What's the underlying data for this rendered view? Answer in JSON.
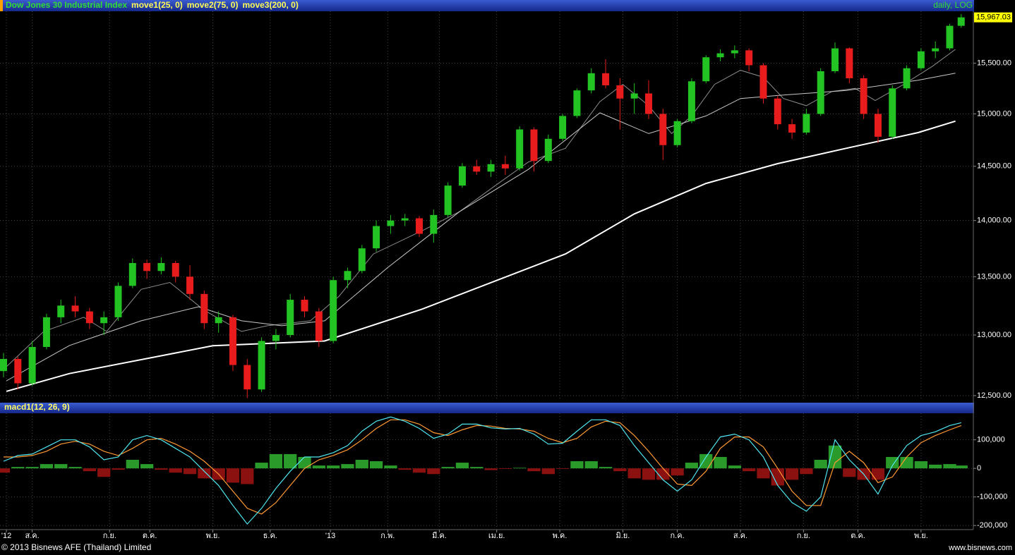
{
  "chart_data": [
    {
      "type": "candlestick",
      "title": "Dow Jones 30 Industrial Index",
      "header_right": "daily, LOG",
      "log_scale": true,
      "grid": true,
      "up_color": "#22c322",
      "down_color": "#e81c1c",
      "xlim": [
        0,
        338
      ],
      "ylim": [
        12460,
        16030
      ],
      "yticks": [
        {
          "value": 12500,
          "label": "12,500.00"
        },
        {
          "value": 13000,
          "label": "13,000.00"
        },
        {
          "value": 13500,
          "label": "13,500.00"
        },
        {
          "value": 14000,
          "label": "14,000.00"
        },
        {
          "value": 14500,
          "label": "14,500.00"
        },
        {
          "value": 15000,
          "label": "15,000.00"
        },
        {
          "value": 15500,
          "label": "15,500.00"
        }
      ],
      "x": [
        0,
        5,
        10,
        15,
        20,
        25,
        30,
        35,
        40,
        45,
        50,
        55,
        60,
        65,
        70,
        75,
        80,
        85,
        90,
        95,
        100,
        105,
        110,
        115,
        120,
        125,
        130,
        135,
        140,
        145,
        150,
        155,
        160,
        165,
        170,
        175,
        180,
        185,
        190,
        195,
        200,
        205,
        210,
        215,
        220,
        225,
        230,
        235,
        240,
        245,
        250,
        255,
        260,
        265,
        270,
        275,
        280,
        285,
        290,
        295,
        300,
        305,
        310,
        315,
        320,
        325,
        330,
        334
      ],
      "open": [
        12700,
        12800,
        12600,
        12900,
        13150,
        13250,
        13200,
        13100,
        13150,
        13420,
        13620,
        13550,
        13620,
        13500,
        13350,
        13100,
        13150,
        12750,
        12550,
        12950,
        13000,
        13300,
        13200,
        12950,
        13470,
        13550,
        13750,
        13950,
        14000,
        14020,
        13880,
        14050,
        14320,
        14500,
        14450,
        14520,
        14480,
        14850,
        14550,
        14760,
        14980,
        15230,
        15400,
        15280,
        15150,
        15200,
        15000,
        14700,
        14930,
        15320,
        15560,
        15600,
        15630,
        15480,
        15150,
        14900,
        14820,
        15000,
        15420,
        15650,
        15350,
        15000,
        14780,
        15250,
        15450,
        15620,
        15650,
        15880
      ],
      "high": [
        12850,
        12820,
        12950,
        13180,
        13300,
        13330,
        13230,
        13200,
        13450,
        13660,
        13650,
        13670,
        13640,
        13600,
        13380,
        13200,
        13170,
        12800,
        12980,
        13050,
        13350,
        13330,
        13230,
        13500,
        13580,
        13780,
        14000,
        14050,
        14060,
        14040,
        14100,
        14350,
        14530,
        14560,
        14560,
        14600,
        14880,
        14870,
        14800,
        15000,
        15250,
        15450,
        15540,
        15350,
        15300,
        15330,
        15050,
        14950,
        15350,
        15580,
        15640,
        15680,
        15650,
        15500,
        15180,
        14950,
        15050,
        15450,
        15710,
        15660,
        15380,
        15050,
        15280,
        15480,
        15650,
        15720,
        15900,
        16000
      ],
      "low": [
        12650,
        12550,
        12580,
        12880,
        13100,
        13150,
        13050,
        13000,
        13120,
        13400,
        13480,
        13520,
        13450,
        13300,
        13050,
        13020,
        12700,
        12480,
        12530,
        12880,
        12980,
        13150,
        12900,
        12930,
        13400,
        13530,
        13720,
        13880,
        13950,
        13850,
        13800,
        14030,
        14300,
        14420,
        14400,
        14420,
        14460,
        14450,
        14530,
        14740,
        14960,
        15200,
        15250,
        14850,
        15000,
        14950,
        14560,
        14680,
        14910,
        15300,
        15520,
        15550,
        15420,
        15100,
        14850,
        14760,
        14800,
        14980,
        15400,
        15300,
        14950,
        14720,
        14760,
        15230,
        15430,
        15550,
        15630,
        15860
      ],
      "close": [
        12800,
        12600,
        12900,
        13150,
        13250,
        13200,
        13100,
        13150,
        13420,
        13620,
        13550,
        13620,
        13500,
        13350,
        13100,
        13150,
        12750,
        12550,
        12950,
        13000,
        13300,
        13200,
        12950,
        13470,
        13550,
        13750,
        13950,
        14000,
        14020,
        13880,
        14050,
        14320,
        14500,
        14450,
        14520,
        14480,
        14850,
        14550,
        14760,
        14980,
        15230,
        15400,
        15280,
        15150,
        15200,
        15000,
        14700,
        14930,
        15320,
        15560,
        15600,
        15630,
        15480,
        15150,
        14900,
        14820,
        15000,
        15420,
        15650,
        15350,
        15000,
        14780,
        15250,
        15450,
        15620,
        15650,
        15880,
        15967.03
      ],
      "last_price_label": "15,967.03",
      "series": [
        {
          "name": "move1(25, 0)",
          "color": "#8c8c8c",
          "x": [
            1,
            14,
            28,
            36,
            48,
            58,
            70,
            83,
            92,
            107,
            117,
            129,
            147,
            159,
            171,
            183,
            196,
            208,
            216,
            225,
            233,
            240,
            248,
            257,
            265,
            272,
            280,
            289,
            297,
            304,
            314,
            324,
            332
          ],
          "values": [
            12736,
            13030,
            13150,
            13030,
            13390,
            13450,
            13210,
            13030,
            13078,
            13120,
            13330,
            13700,
            13920,
            14080,
            14310,
            14540,
            14670,
            15120,
            15290,
            15080,
            14810,
            14980,
            15290,
            15430,
            15360,
            15150,
            15080,
            15220,
            15250,
            15130,
            15290,
            15470,
            15640
          ]
        },
        {
          "name": "move2(75, 0)",
          "color": "#c8c8c8",
          "x": [
            1,
            23,
            48,
            68,
            83,
            97,
            112,
            134,
            159,
            183,
            208,
            225,
            245,
            257,
            270,
            294,
            319,
            332
          ],
          "values": [
            12620,
            12912,
            13120,
            13240,
            13120,
            13078,
            13120,
            13580,
            14080,
            14470,
            15010,
            14810,
            14980,
            15150,
            15180,
            15230,
            15330,
            15400
          ]
        },
        {
          "name": "move3(200, 0)",
          "color": "#ffffff",
          "x": [
            1,
            23,
            73,
            112,
            146,
            196,
            220,
            245,
            270,
            294,
            319,
            332
          ],
          "values": [
            12535,
            12680,
            12910,
            12950,
            13220,
            13700,
            14060,
            14340,
            14525,
            14670,
            14820,
            14930
          ]
        }
      ]
    },
    {
      "type": "combo",
      "title": "macd1(12, 26, 9)",
      "grid": true,
      "xlim": [
        0,
        338
      ],
      "ylim": [
        -212000,
        193000
      ],
      "yticks": [
        {
          "value": 100000,
          "label": "100,000"
        },
        0,
        {
          "value": -100000,
          "label": "-100,000"
        },
        {
          "value": -200000,
          "label": "-200,000"
        }
      ],
      "xticks": [
        {
          "value": 1,
          "label": "'12"
        },
        {
          "value": 10,
          "label": "ส.ค."
        },
        {
          "value": 37,
          "label": "ก.ย."
        },
        {
          "value": 51,
          "label": "ต.ค."
        },
        {
          "value": 73,
          "label": "พ.ย."
        },
        {
          "value": 93,
          "label": "ธ.ค."
        },
        {
          "value": 114,
          "label": "'13"
        },
        {
          "value": 134,
          "label": "ก.พ."
        },
        {
          "value": 152,
          "label": "มี.ค."
        },
        {
          "value": 172,
          "label": "เม.ย."
        },
        {
          "value": 194,
          "label": "พ.ค."
        },
        {
          "value": 216,
          "label": "มิ.ย."
        },
        {
          "value": 235,
          "label": "ก.ค."
        },
        {
          "value": 257,
          "label": "ส.ค."
        },
        {
          "value": 279,
          "label": "ก.ย."
        },
        {
          "value": 298,
          "label": "ต.ค."
        },
        {
          "value": 320,
          "label": "พ.ย."
        }
      ],
      "x": [
        0,
        5,
        10,
        15,
        20,
        25,
        30,
        35,
        40,
        45,
        50,
        55,
        60,
        65,
        70,
        75,
        80,
        85,
        90,
        95,
        100,
        105,
        110,
        115,
        120,
        125,
        130,
        135,
        140,
        145,
        150,
        155,
        160,
        165,
        170,
        175,
        180,
        185,
        190,
        195,
        200,
        205,
        210,
        215,
        220,
        225,
        230,
        235,
        240,
        245,
        250,
        255,
        260,
        265,
        270,
        275,
        280,
        285,
        290,
        295,
        300,
        305,
        310,
        315,
        320,
        325,
        330,
        334
      ],
      "series": [
        {
          "style": "bar",
          "color": "#2a9a2a",
          "negative_color": "#8b1010",
          "values": [
            -15000,
            5000,
            5000,
            15000,
            15000,
            5000,
            -10000,
            -30000,
            -5000,
            30000,
            15000,
            -5000,
            -15000,
            -20000,
            -35000,
            -40000,
            -50000,
            -55000,
            20000,
            50000,
            50000,
            40000,
            10000,
            10000,
            15000,
            30000,
            25000,
            10000,
            -5000,
            -15000,
            -20000,
            5000,
            20000,
            5000,
            -6000,
            -2000,
            2000,
            -10000,
            -20000,
            -2000,
            25000,
            25000,
            5000,
            -10000,
            -35000,
            -40000,
            -40000,
            -25000,
            20000,
            50000,
            40000,
            10000,
            -10000,
            -35000,
            -60000,
            -40000,
            -20000,
            30000,
            80000,
            -30000,
            -40000,
            -40000,
            40000,
            40000,
            25000,
            13000,
            15000,
            10000
          ]
        },
        {
          "style": "line",
          "color": "#ff9933",
          "values": [
            40000,
            40000,
            45000,
            60000,
            85000,
            95000,
            85000,
            60000,
            45000,
            70000,
            100000,
            105000,
            85000,
            60000,
            25000,
            -20000,
            -80000,
            -140000,
            -160000,
            -120000,
            -60000,
            0,
            30000,
            45000,
            65000,
            100000,
            140000,
            170000,
            170000,
            155000,
            125000,
            115000,
            135000,
            150000,
            148000,
            140000,
            138000,
            130000,
            105000,
            90000,
            105000,
            145000,
            165000,
            160000,
            115000,
            60000,
            0,
            -55000,
            -60000,
            -10000,
            70000,
            110000,
            110000,
            75000,
            0,
            -80000,
            -130000,
            -130000,
            20000,
            60000,
            20000,
            -50000,
            -30000,
            40000,
            90000,
            115000,
            135000,
            150000
          ]
        },
        {
          "style": "line",
          "color": "#4fe6f0",
          "values": [
            25000,
            45000,
            50000,
            75000,
            100000,
            100000,
            75000,
            30000,
            40000,
            100000,
            115000,
            100000,
            70000,
            40000,
            -10000,
            -60000,
            -130000,
            -195000,
            -140000,
            -70000,
            -10000,
            40000,
            40000,
            55000,
            80000,
            130000,
            165000,
            180000,
            165000,
            140000,
            105000,
            120000,
            155000,
            155000,
            142000,
            138000,
            140000,
            120000,
            85000,
            88000,
            130000,
            170000,
            170000,
            150000,
            80000,
            20000,
            -40000,
            -80000,
            -40000,
            40000,
            110000,
            120000,
            100000,
            40000,
            -60000,
            -120000,
            -150000,
            -100000,
            100000,
            30000,
            -20000,
            -90000,
            10000,
            80000,
            115000,
            128000,
            150000,
            160000
          ]
        }
      ]
    }
  ],
  "footer": {
    "copyright": "© 2013 Bisnews AFE (Thailand) Limited",
    "site": "www.bisnews.com"
  }
}
